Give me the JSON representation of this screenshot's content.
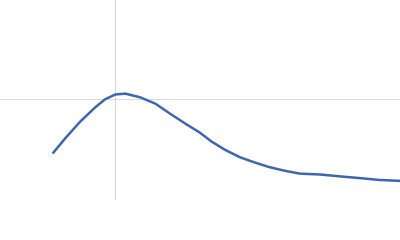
{
  "chart_data": {
    "type": "line",
    "xlim": [
      0,
      6
    ],
    "ylim": [
      0,
      2.2
    ],
    "vlines": [
      1.732
    ],
    "hlines": [
      1.104
    ],
    "series": [
      {
        "color": "#3a67b0",
        "x": [
          0.8,
          0.98,
          1.2,
          1.43,
          1.58,
          1.73,
          1.88,
          2.1,
          2.33,
          2.55,
          2.78,
          3.0,
          3.18,
          3.38,
          3.6,
          3.83,
          4.05,
          4.28,
          4.5,
          4.8,
          5.1,
          5.4,
          5.7,
          6.0
        ],
        "values": [
          0.52,
          0.68,
          0.86,
          1.02,
          1.11,
          1.16,
          1.17,
          1.13,
          1.06,
          0.95,
          0.84,
          0.74,
          0.64,
          0.55,
          0.47,
          0.41,
          0.36,
          0.32,
          0.29,
          0.28,
          0.26,
          0.24,
          0.22,
          0.21
        ]
      }
    ]
  }
}
